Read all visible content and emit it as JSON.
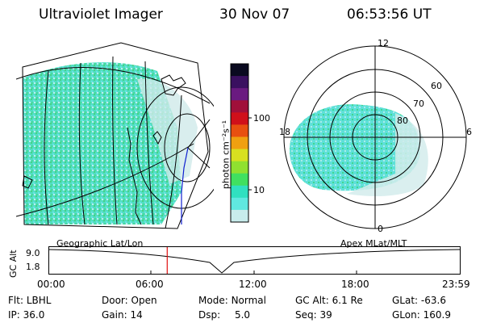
{
  "header": {
    "instrument": "Ultraviolet Imager",
    "date": "30 Nov 07",
    "time": "06:53:56 UT"
  },
  "colorbar": {
    "unit_label": "photon cm⁻²s⁻¹",
    "ticks": [
      "100",
      "10"
    ],
    "colors": [
      "#0a0a20",
      "#3a1060",
      "#6a1a80",
      "#a0103a",
      "#d0101a",
      "#e85010",
      "#f0a010",
      "#d8e020",
      "#90e030",
      "#40e060",
      "#30e0c0",
      "#60e8e0",
      "#c8ecec"
    ]
  },
  "geo_panel": {
    "label": "Geographic Lat/Lon"
  },
  "polar_panel": {
    "label": "Apex MLat/MLT",
    "mlt_labels": {
      "top": "12",
      "left": "18",
      "right": "6",
      "bottom": "0"
    },
    "lat_labels": [
      "60",
      "70",
      "80"
    ]
  },
  "altitude_plot": {
    "axis_label": "GC Alt",
    "y_ticks": [
      "9.0",
      "1.8"
    ],
    "x_ticks": [
      "00:00",
      "06:00",
      "12:00",
      "18:00",
      "23:59"
    ],
    "marker_time_fraction": 0.2888
  },
  "info": {
    "row1": [
      {
        "label": "Flt:",
        "value": "LBHL"
      },
      {
        "label": "Door:",
        "value": "Open"
      },
      {
        "label": "Mode:",
        "value": "Normal"
      },
      {
        "label": "GC Alt:",
        "value": "6.1 Re"
      },
      {
        "label": "GLat:",
        "value": "-63.6"
      }
    ],
    "row2": [
      {
        "label": "IP:",
        "value": "36.0"
      },
      {
        "label": "Gain:",
        "value": "14"
      },
      {
        "label": "Dsp:",
        "value": "5.0"
      },
      {
        "label": "Seq:",
        "value": "39"
      },
      {
        "label": "GLon:",
        "value": "160.9"
      }
    ]
  }
}
